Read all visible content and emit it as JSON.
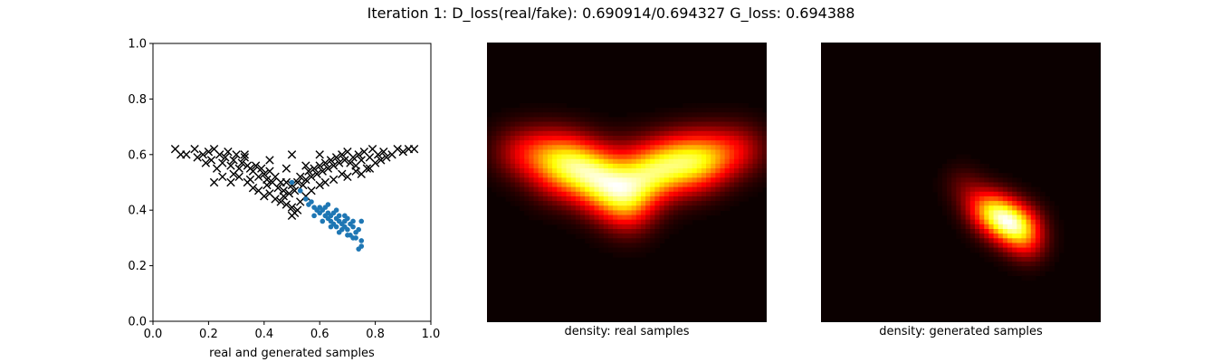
{
  "figure": {
    "title": "Iteration 1: D_loss(real/fake): 0.690914/0.694327 G_loss: 0.694388"
  },
  "chart_data": [
    {
      "type": "scatter",
      "xlabel": "real and generated samples",
      "xlim": [
        0.0,
        1.0
      ],
      "ylim": [
        0.0,
        1.0
      ],
      "xticks": [
        "0.0",
        "0.2",
        "0.4",
        "0.6",
        "0.8",
        "1.0"
      ],
      "yticks": [
        "0.0",
        "0.2",
        "0.4",
        "0.6",
        "0.8",
        "1.0"
      ],
      "grid": false,
      "series": [
        {
          "marker": "x",
          "color": "#000000",
          "points": [
            [
              0.08,
              0.62
            ],
            [
              0.1,
              0.6
            ],
            [
              0.12,
              0.6
            ],
            [
              0.15,
              0.62
            ],
            [
              0.16,
              0.59
            ],
            [
              0.18,
              0.6
            ],
            [
              0.19,
              0.57
            ],
            [
              0.2,
              0.61
            ],
            [
              0.21,
              0.58
            ],
            [
              0.22,
              0.62
            ],
            [
              0.23,
              0.55
            ],
            [
              0.24,
              0.6
            ],
            [
              0.25,
              0.57
            ],
            [
              0.26,
              0.59
            ],
            [
              0.27,
              0.61
            ],
            [
              0.28,
              0.56
            ],
            [
              0.29,
              0.58
            ],
            [
              0.3,
              0.6
            ],
            [
              0.31,
              0.55
            ],
            [
              0.32,
              0.57
            ],
            [
              0.33,
              0.59
            ],
            [
              0.34,
              0.56
            ],
            [
              0.35,
              0.55
            ],
            [
              0.36,
              0.54
            ],
            [
              0.37,
              0.56
            ],
            [
              0.38,
              0.52
            ],
            [
              0.39,
              0.55
            ],
            [
              0.4,
              0.53
            ],
            [
              0.41,
              0.51
            ],
            [
              0.42,
              0.54
            ],
            [
              0.43,
              0.5
            ],
            [
              0.44,
              0.52
            ],
            [
              0.45,
              0.48
            ],
            [
              0.46,
              0.5
            ],
            [
              0.47,
              0.47
            ],
            [
              0.48,
              0.5
            ],
            [
              0.49,
              0.46
            ],
            [
              0.5,
              0.49
            ],
            [
              0.51,
              0.47
            ],
            [
              0.52,
              0.5
            ],
            [
              0.53,
              0.52
            ],
            [
              0.54,
              0.49
            ],
            [
              0.55,
              0.51
            ],
            [
              0.56,
              0.54
            ],
            [
              0.57,
              0.52
            ],
            [
              0.58,
              0.55
            ],
            [
              0.59,
              0.53
            ],
            [
              0.6,
              0.56
            ],
            [
              0.61,
              0.54
            ],
            [
              0.62,
              0.57
            ],
            [
              0.63,
              0.55
            ],
            [
              0.64,
              0.58
            ],
            [
              0.65,
              0.56
            ],
            [
              0.66,
              0.59
            ],
            [
              0.67,
              0.57
            ],
            [
              0.68,
              0.6
            ],
            [
              0.69,
              0.58
            ],
            [
              0.7,
              0.61
            ],
            [
              0.71,
              0.57
            ],
            [
              0.72,
              0.59
            ],
            [
              0.73,
              0.56
            ],
            [
              0.74,
              0.6
            ],
            [
              0.75,
              0.58
            ],
            [
              0.76,
              0.61
            ],
            [
              0.77,
              0.55
            ],
            [
              0.78,
              0.59
            ],
            [
              0.79,
              0.62
            ],
            [
              0.8,
              0.57
            ],
            [
              0.81,
              0.6
            ],
            [
              0.82,
              0.58
            ],
            [
              0.83,
              0.61
            ],
            [
              0.84,
              0.59
            ],
            [
              0.86,
              0.6
            ],
            [
              0.88,
              0.62
            ],
            [
              0.9,
              0.61
            ],
            [
              0.92,
              0.62
            ],
            [
              0.94,
              0.62
            ],
            [
              0.22,
              0.5
            ],
            [
              0.25,
              0.52
            ],
            [
              0.28,
              0.5
            ],
            [
              0.31,
              0.52
            ],
            [
              0.34,
              0.5
            ],
            [
              0.36,
              0.48
            ],
            [
              0.38,
              0.47
            ],
            [
              0.4,
              0.45
            ],
            [
              0.42,
              0.46
            ],
            [
              0.44,
              0.44
            ],
            [
              0.46,
              0.43
            ],
            [
              0.48,
              0.42
            ],
            [
              0.5,
              0.41
            ],
            [
              0.51,
              0.39
            ],
            [
              0.52,
              0.4
            ],
            [
              0.5,
              0.38
            ],
            [
              0.53,
              0.43
            ],
            [
              0.55,
              0.45
            ],
            [
              0.57,
              0.47
            ],
            [
              0.6,
              0.49
            ],
            [
              0.62,
              0.5
            ],
            [
              0.65,
              0.51
            ],
            [
              0.68,
              0.53
            ],
            [
              0.7,
              0.52
            ],
            [
              0.73,
              0.54
            ],
            [
              0.75,
              0.53
            ],
            [
              0.78,
              0.55
            ],
            [
              0.33,
              0.6
            ],
            [
              0.42,
              0.58
            ],
            [
              0.48,
              0.55
            ],
            [
              0.55,
              0.56
            ],
            [
              0.5,
              0.6
            ],
            [
              0.6,
              0.6
            ],
            [
              0.29,
              0.53
            ],
            [
              0.35,
              0.51
            ],
            [
              0.41,
              0.49
            ],
            [
              0.47,
              0.45
            ]
          ]
        },
        {
          "marker": "o",
          "color": "#1f77b4",
          "points": [
            [
              0.5,
              0.5
            ],
            [
              0.53,
              0.47
            ],
            [
              0.55,
              0.44
            ],
            [
              0.56,
              0.42
            ],
            [
              0.57,
              0.43
            ],
            [
              0.58,
              0.41
            ],
            [
              0.59,
              0.4
            ],
            [
              0.6,
              0.41
            ],
            [
              0.6,
              0.39
            ],
            [
              0.61,
              0.4
            ],
            [
              0.62,
              0.38
            ],
            [
              0.62,
              0.41
            ],
            [
              0.63,
              0.39
            ],
            [
              0.63,
              0.37
            ],
            [
              0.64,
              0.38
            ],
            [
              0.64,
              0.36
            ],
            [
              0.65,
              0.39
            ],
            [
              0.65,
              0.35
            ],
            [
              0.66,
              0.37
            ],
            [
              0.66,
              0.34
            ],
            [
              0.67,
              0.36
            ],
            [
              0.67,
              0.38
            ],
            [
              0.68,
              0.35
            ],
            [
              0.68,
              0.33
            ],
            [
              0.69,
              0.36
            ],
            [
              0.69,
              0.34
            ],
            [
              0.7,
              0.37
            ],
            [
              0.7,
              0.33
            ],
            [
              0.71,
              0.35
            ],
            [
              0.71,
              0.31
            ],
            [
              0.72,
              0.34
            ],
            [
              0.72,
              0.36
            ],
            [
              0.73,
              0.32
            ],
            [
              0.73,
              0.3
            ],
            [
              0.74,
              0.33
            ],
            [
              0.75,
              0.36
            ],
            [
              0.75,
              0.29
            ],
            [
              0.75,
              0.27
            ],
            [
              0.74,
              0.26
            ],
            [
              0.61,
              0.36
            ],
            [
              0.63,
              0.42
            ],
            [
              0.66,
              0.4
            ],
            [
              0.69,
              0.38
            ],
            [
              0.7,
              0.31
            ],
            [
              0.72,
              0.3
            ],
            [
              0.58,
              0.38
            ],
            [
              0.67,
              0.32
            ],
            [
              0.64,
              0.34
            ]
          ]
        }
      ]
    },
    {
      "type": "heatmap",
      "xlabel": "density: real samples",
      "colormap": "hot",
      "grid": false
    },
    {
      "type": "heatmap",
      "xlabel": "density: generated samples",
      "colormap": "hot",
      "grid": false
    }
  ]
}
